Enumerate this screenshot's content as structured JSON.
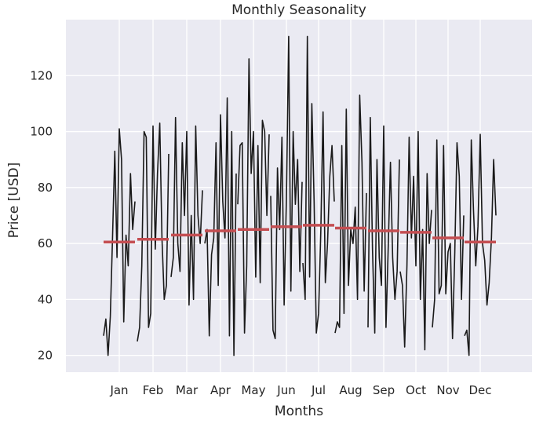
{
  "chart_data": {
    "type": "line",
    "title": "Monthly Seasonality",
    "xlabel": "Months",
    "ylabel": "Price [USD]",
    "ylim": [
      14,
      140
    ],
    "yticks": [
      20,
      40,
      60,
      80,
      100,
      120
    ],
    "grid": true,
    "background": "#eaeaf2",
    "series_color": "#1a1a1a",
    "mean_color": "#c44e52",
    "categories": [
      "Jan",
      "Feb",
      "Mar",
      "Apr",
      "May",
      "Jun",
      "Jul",
      "Aug",
      "Sep",
      "Oct",
      "Nov",
      "Dec"
    ],
    "monthly_means": [
      60.5,
      61.5,
      63.0,
      64.5,
      65.0,
      66.0,
      66.5,
      65.5,
      64.5,
      64.0,
      62.0,
      60.5
    ],
    "yearly_values": [
      [
        27,
        25,
        48,
        60,
        74,
        77,
        53,
        28,
        30,
        50,
        30,
        27
      ],
      [
        33,
        30,
        55,
        65,
        95,
        29,
        40,
        32,
        105,
        45,
        40,
        29
      ],
      [
        20,
        52,
        105,
        27,
        96,
        26,
        134,
        30,
        58,
        23,
        97,
        20
      ],
      [
        34,
        100,
        60,
        56,
        28,
        87,
        48,
        95,
        28,
        52,
        42,
        97
      ],
      [
        62,
        98,
        50,
        62,
        52,
        65,
        110,
        35,
        90,
        98,
        45,
        72
      ],
      [
        93,
        30,
        96,
        96,
        126,
        98,
        75,
        108,
        55,
        62,
        95,
        52
      ],
      [
        55,
        35,
        70,
        45,
        85,
        38,
        28,
        45,
        45,
        84,
        42,
        66
      ],
      [
        101,
        102,
        100,
        106,
        100,
        76,
        35,
        65,
        102,
        52,
        57,
        99
      ],
      [
        90,
        58,
        38,
        75,
        48,
        134,
        65,
        60,
        30,
        100,
        60,
        60
      ],
      [
        32,
        85,
        70,
        62,
        95,
        43,
        107,
        73,
        58,
        40,
        26,
        54
      ],
      [
        63,
        103,
        40,
        112,
        46,
        100,
        46,
        40,
        89,
        65,
        57,
        38
      ],
      [
        52,
        62,
        102,
        27,
        104,
        74,
        60,
        113,
        55,
        22,
        96,
        46
      ],
      [
        85,
        40,
        70,
        100,
        100,
        90,
        84,
        89,
        40,
        85,
        84,
        62
      ],
      [
        65,
        45,
        60,
        20,
        70,
        50,
        95,
        43,
        50,
        60,
        40,
        90
      ],
      [
        75,
        92,
        79,
        85,
        99,
        82,
        75,
        78,
        90,
        72,
        70,
        70
      ]
    ]
  }
}
